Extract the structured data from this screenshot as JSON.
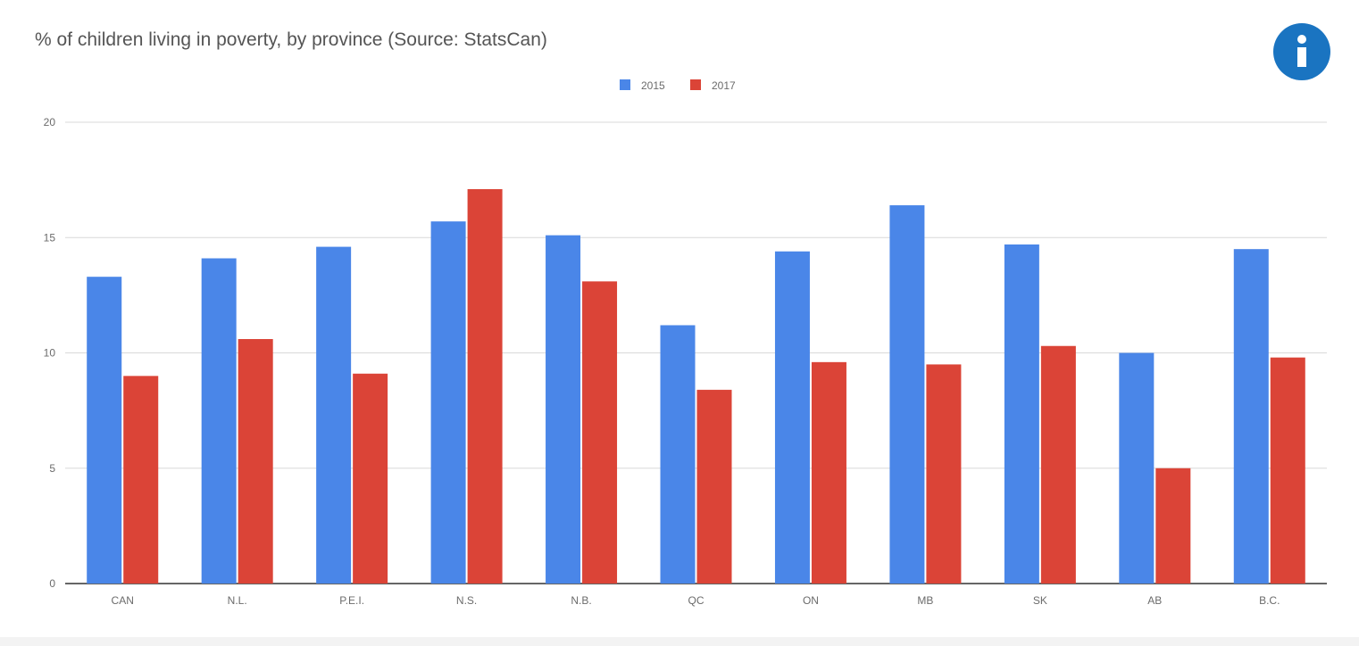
{
  "colors": {
    "series_2015": "#4a86e8",
    "series_2017": "#db4437",
    "info_button": "#1a74c1"
  },
  "info_button": {
    "icon": "info-icon"
  },
  "chart_data": {
    "type": "bar",
    "title": "% of children living in poverty, by province (Source: StatsCan)",
    "xlabel": "",
    "ylabel": "",
    "categories": [
      "CAN",
      "N.L.",
      "P.E.I.",
      "N.S.",
      "N.B.",
      "QC",
      "ON",
      "MB",
      "SK",
      "AB",
      "B.C."
    ],
    "series": [
      {
        "name": "2015",
        "values": [
          13.3,
          14.1,
          14.6,
          15.7,
          15.1,
          11.2,
          14.4,
          16.4,
          14.7,
          10.0,
          14.5
        ]
      },
      {
        "name": "2017",
        "values": [
          9.0,
          10.6,
          9.1,
          17.1,
          13.1,
          8.4,
          9.6,
          9.5,
          10.3,
          5.0,
          9.8
        ]
      }
    ],
    "ylim": [
      0,
      20
    ],
    "yticks": [
      0,
      5,
      10,
      15,
      20
    ],
    "grid": true,
    "legend_position": "top-center"
  }
}
